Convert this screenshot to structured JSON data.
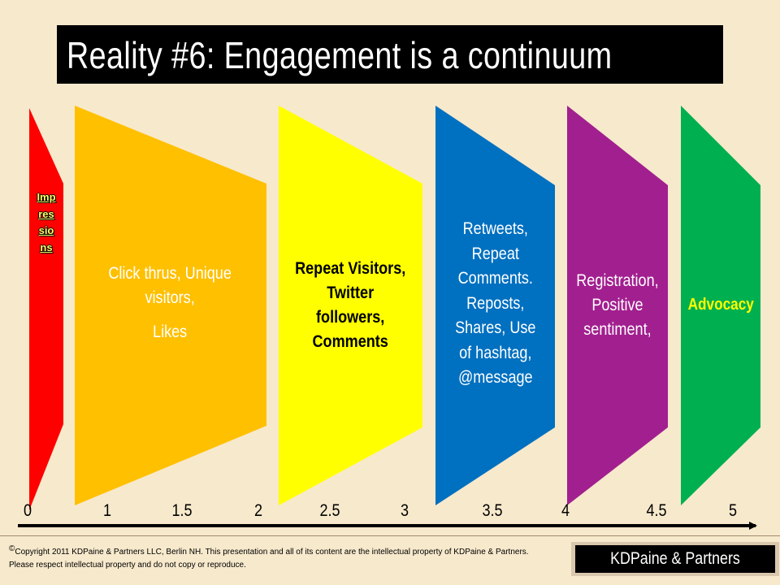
{
  "title": "Reality #6: Engagement is a continuum",
  "stages": [
    {
      "label": "Impressions",
      "letters": [
        "I",
        "m",
        "p",
        "r",
        "e",
        "s",
        "s",
        "i",
        "o",
        "n",
        "s"
      ],
      "color": "#ff0000"
    },
    {
      "label_lines": [
        "Click thrus, Unique",
        "visitors,",
        "Likes"
      ],
      "color": "#ffc000",
      "text_color": "#ffffff"
    },
    {
      "label_lines": [
        "Repeat Visitors,",
        "Twitter",
        "followers,",
        "Comments"
      ],
      "color": "#ffff00",
      "text_color": "#000000"
    },
    {
      "label_lines": [
        "Retweets,",
        "Repeat",
        "Comments.",
        "Reposts,",
        "Shares, Use",
        "of hashtag,",
        "@message"
      ],
      "color": "#0070c0",
      "text_color": "#ffffff"
    },
    {
      "label_lines": [
        "Registration,",
        "Positive",
        "sentiment,"
      ],
      "color": "#a21f8f",
      "text_color": "#ffffff"
    },
    {
      "label_lines": [
        "Advocacy"
      ],
      "color": "#00b050",
      "text_color": "#ffff00"
    }
  ],
  "axis": {
    "ticks": [
      "0",
      "1",
      "1.5",
      "2",
      "2.5",
      "3",
      "3.5",
      "4",
      "4.5",
      "5"
    ]
  },
  "footer": {
    "copyright_symbol": "©",
    "copyright_text": "Copyright 2011 KDPaine & Partners LLC, Berlin NH. This presentation and all of its content are the intellectual property of KDPaine & Partners. Please respect intellectual property and do not copy or reproduce.",
    "logo": "KDPaine & Partners"
  }
}
